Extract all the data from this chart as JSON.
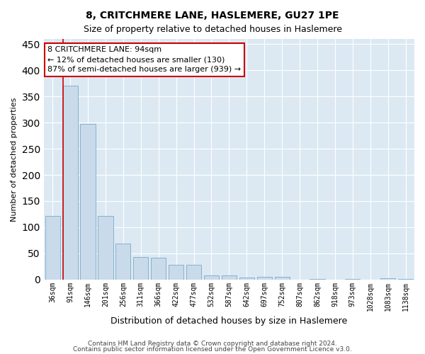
{
  "title": "8, CRITCHMERE LANE, HASLEMERE, GU27 1PE",
  "subtitle": "Size of property relative to detached houses in Haslemere",
  "xlabel": "Distribution of detached houses by size in Haslemere",
  "ylabel": "Number of detached properties",
  "bar_color": "#c9daea",
  "bar_edge_color": "#7aaac8",
  "background_color": "#dce9f3",
  "categories": [
    "36sqm",
    "91sqm",
    "146sqm",
    "201sqm",
    "256sqm",
    "311sqm",
    "366sqm",
    "422sqm",
    "477sqm",
    "532sqm",
    "587sqm",
    "642sqm",
    "697sqm",
    "752sqm",
    "807sqm",
    "862sqm",
    "918sqm",
    "973sqm",
    "1028sqm",
    "1083sqm",
    "1138sqm"
  ],
  "values": [
    121,
    370,
    297,
    122,
    69,
    43,
    42,
    28,
    28,
    8,
    8,
    4,
    5,
    5,
    0,
    1,
    0,
    1,
    0,
    2,
    1
  ],
  "ylim": [
    0,
    460
  ],
  "yticks": [
    0,
    50,
    100,
    150,
    200,
    250,
    300,
    350,
    400,
    450
  ],
  "property_bin_index": 1,
  "annotation_line1": "8 CRITCHMERE LANE: 94sqm",
  "annotation_line2": "← 12% of detached houses are smaller (130)",
  "annotation_line3": "87% of semi-detached houses are larger (939) →",
  "annotation_box_color": "#ffffff",
  "annotation_box_edge": "#cc0000",
  "vline_color": "#cc0000",
  "footnote1": "Contains HM Land Registry data © Crown copyright and database right 2024.",
  "footnote2": "Contains public sector information licensed under the Open Government Licence v3.0.",
  "title_fontsize": 10,
  "subtitle_fontsize": 9,
  "xlabel_fontsize": 9,
  "ylabel_fontsize": 8,
  "tick_fontsize": 7,
  "annotation_fontsize": 8,
  "footnote_fontsize": 6.5
}
